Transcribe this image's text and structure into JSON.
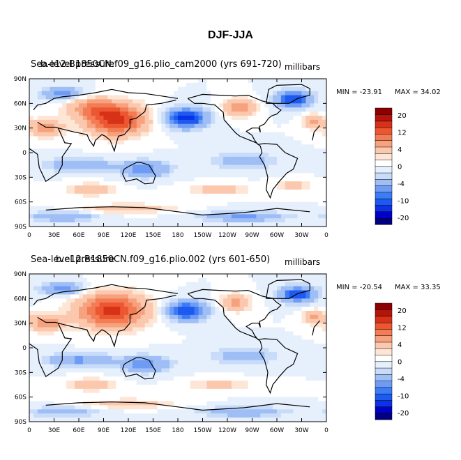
{
  "figure_title": "DJF-JJA",
  "colors": {
    "levels": [
      "#000080",
      "#0000c8",
      "#0a32e6",
      "#1e5af0",
      "#3c7cf5",
      "#6e9cf5",
      "#9ebef5",
      "#c8dcfa",
      "#e6f0fc",
      "#ffffff",
      "#fde6d6",
      "#fbc8ae",
      "#f7a27e",
      "#f37c54",
      "#ec5630",
      "#d73218",
      "#b4140a",
      "#8c0000"
    ]
  },
  "chart_data": [
    {
      "type": "heatmap",
      "title": "Sea-level pressure",
      "case": "b.e12.B1850CN.f09_g16.plio_cam2000 (yrs 691-720)",
      "units": "millibars",
      "min_label": "MIN = -23.91",
      "max_label": "MAX =  34.02",
      "min": -23.91,
      "max": 34.02,
      "ylabels": [
        "90N",
        "60N",
        "30N",
        "0",
        "30S",
        "60S",
        "90S"
      ],
      "xlabels": [
        "0",
        "30E",
        "60E",
        "90E",
        "120E",
        "150E",
        "180",
        "150W",
        "120W",
        "90W",
        "60W",
        "30W",
        "0"
      ],
      "colorbar_labels": [
        "20",
        "12",
        "4",
        "0",
        "-4",
        "-10",
        "-20"
      ],
      "colorbar_levels": [
        -24,
        -20,
        -16,
        -12,
        -10,
        -8,
        -4,
        -2,
        0,
        2,
        4,
        8,
        12,
        16,
        20,
        24,
        28
      ],
      "fields": [
        {
          "lon": 105,
          "lat": 40,
          "amp": 22,
          "rlon": 35,
          "rlat": 18
        },
        {
          "lon": 75,
          "lat": 55,
          "amp": 10,
          "rlon": 30,
          "rlat": 12
        },
        {
          "lon": 20,
          "lat": 30,
          "amp": 12,
          "rlon": 20,
          "rlat": 10
        },
        {
          "lon": 255,
          "lat": 55,
          "amp": 12,
          "rlon": 18,
          "rlat": 10
        },
        {
          "lon": 345,
          "lat": 38,
          "amp": 10,
          "rlon": 12,
          "rlat": 8
        },
        {
          "lon": 190,
          "lat": 42,
          "amp": -18,
          "rlon": 25,
          "rlat": 12
        },
        {
          "lon": 320,
          "lat": 65,
          "amp": -16,
          "rlon": 22,
          "rlat": 10
        },
        {
          "lon": 40,
          "lat": 72,
          "amp": -10,
          "rlon": 25,
          "rlat": 8
        },
        {
          "lon": 140,
          "lat": -20,
          "amp": -10,
          "rlon": 30,
          "rlat": 10
        },
        {
          "lon": 60,
          "lat": -15,
          "amp": -8,
          "rlon": 40,
          "rlat": 8
        },
        {
          "lon": 260,
          "lat": -10,
          "amp": -6,
          "rlon": 40,
          "rlat": 10
        },
        {
          "lon": 75,
          "lat": -45,
          "amp": 8,
          "rlon": 25,
          "rlat": 7
        },
        {
          "lon": 230,
          "lat": -45,
          "amp": 7,
          "rlon": 35,
          "rlat": 6
        },
        {
          "lon": 320,
          "lat": -40,
          "amp": 6,
          "rlon": 20,
          "rlat": 6
        },
        {
          "lon": 120,
          "lat": -68,
          "amp": 8,
          "rlon": 50,
          "rlat": 5
        },
        {
          "lon": 40,
          "lat": -78,
          "amp": -8,
          "rlon": 40,
          "rlat": 6
        },
        {
          "lon": 260,
          "lat": -78,
          "amp": -9,
          "rlon": 50,
          "rlat": 6
        }
      ]
    },
    {
      "type": "heatmap",
      "title": "Sea-level pressure",
      "case": "b.e12.B1850CN.f09_g16.plio.002 (yrs 601-650)",
      "units": "millibars",
      "min_label": "MIN = -20.54",
      "max_label": "MAX =  33.35",
      "min": -20.54,
      "max": 33.35,
      "ylabels": [
        "90N",
        "60N",
        "30N",
        "0",
        "30S",
        "60S",
        "90S"
      ],
      "xlabels": [
        "0",
        "30E",
        "60E",
        "90E",
        "120E",
        "150E",
        "180",
        "150W",
        "120W",
        "90W",
        "60W",
        "30W",
        "0"
      ],
      "colorbar_labels": [
        "20",
        "12",
        "4",
        "0",
        "-4",
        "-10",
        "-20"
      ],
      "colorbar_levels": [
        -24,
        -20,
        -16,
        -12,
        -10,
        -8,
        -4,
        -2,
        0,
        2,
        4,
        8,
        12,
        16,
        20,
        24,
        28
      ],
      "fields": [
        {
          "lon": 100,
          "lat": 45,
          "amp": 22,
          "rlon": 40,
          "rlat": 20
        },
        {
          "lon": 20,
          "lat": 30,
          "amp": 12,
          "rlon": 20,
          "rlat": 10
        },
        {
          "lon": 250,
          "lat": 55,
          "amp": 10,
          "rlon": 18,
          "rlat": 10
        },
        {
          "lon": 345,
          "lat": 38,
          "amp": 10,
          "rlon": 12,
          "rlat": 8
        },
        {
          "lon": 190,
          "lat": 45,
          "amp": -16,
          "rlon": 25,
          "rlat": 12
        },
        {
          "lon": 325,
          "lat": 65,
          "amp": -15,
          "rlon": 22,
          "rlat": 10
        },
        {
          "lon": 40,
          "lat": 72,
          "amp": -10,
          "rlon": 25,
          "rlat": 8
        },
        {
          "lon": 140,
          "lat": -20,
          "amp": -10,
          "rlon": 30,
          "rlat": 10
        },
        {
          "lon": 60,
          "lat": -15,
          "amp": -9,
          "rlon": 40,
          "rlat": 8
        },
        {
          "lon": 260,
          "lat": -10,
          "amp": -6,
          "rlon": 40,
          "rlat": 10
        },
        {
          "lon": 75,
          "lat": -45,
          "amp": 8,
          "rlon": 25,
          "rlat": 7
        },
        {
          "lon": 230,
          "lat": -45,
          "amp": 6,
          "rlon": 35,
          "rlat": 6
        },
        {
          "lon": 120,
          "lat": -68,
          "amp": 7,
          "rlon": 50,
          "rlat": 5
        },
        {
          "lon": 40,
          "lat": -78,
          "amp": -7,
          "rlon": 40,
          "rlat": 6
        },
        {
          "lon": 260,
          "lat": -78,
          "amp": -8,
          "rlon": 50,
          "rlat": 6
        }
      ]
    }
  ]
}
